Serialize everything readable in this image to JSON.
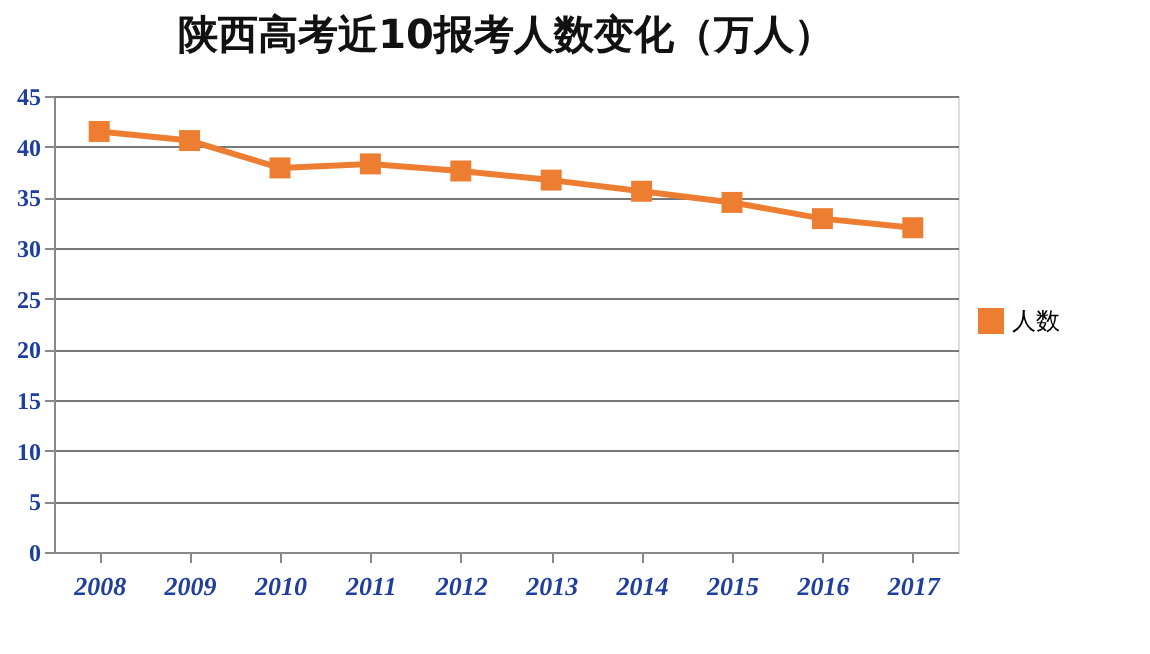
{
  "chart_data": {
    "type": "line",
    "title": "陕西高考近10报考人数变化（万人）",
    "categories": [
      "2008",
      "2009",
      "2010",
      "2011",
      "2012",
      "2013",
      "2014",
      "2015",
      "2016",
      "2017"
    ],
    "series": [
      {
        "name": "人数",
        "color": "#ed7d31",
        "values": [
          41.5,
          40.6,
          37.9,
          38.3,
          37.6,
          36.7,
          35.6,
          34.5,
          32.9,
          32.0
        ]
      }
    ],
    "ylim": [
      0,
      45
    ],
    "yticks": [
      0,
      5,
      10,
      15,
      20,
      25,
      30,
      35,
      40,
      45
    ],
    "grid": "y",
    "legend": "right",
    "marker": "square",
    "line_style": "solid"
  }
}
